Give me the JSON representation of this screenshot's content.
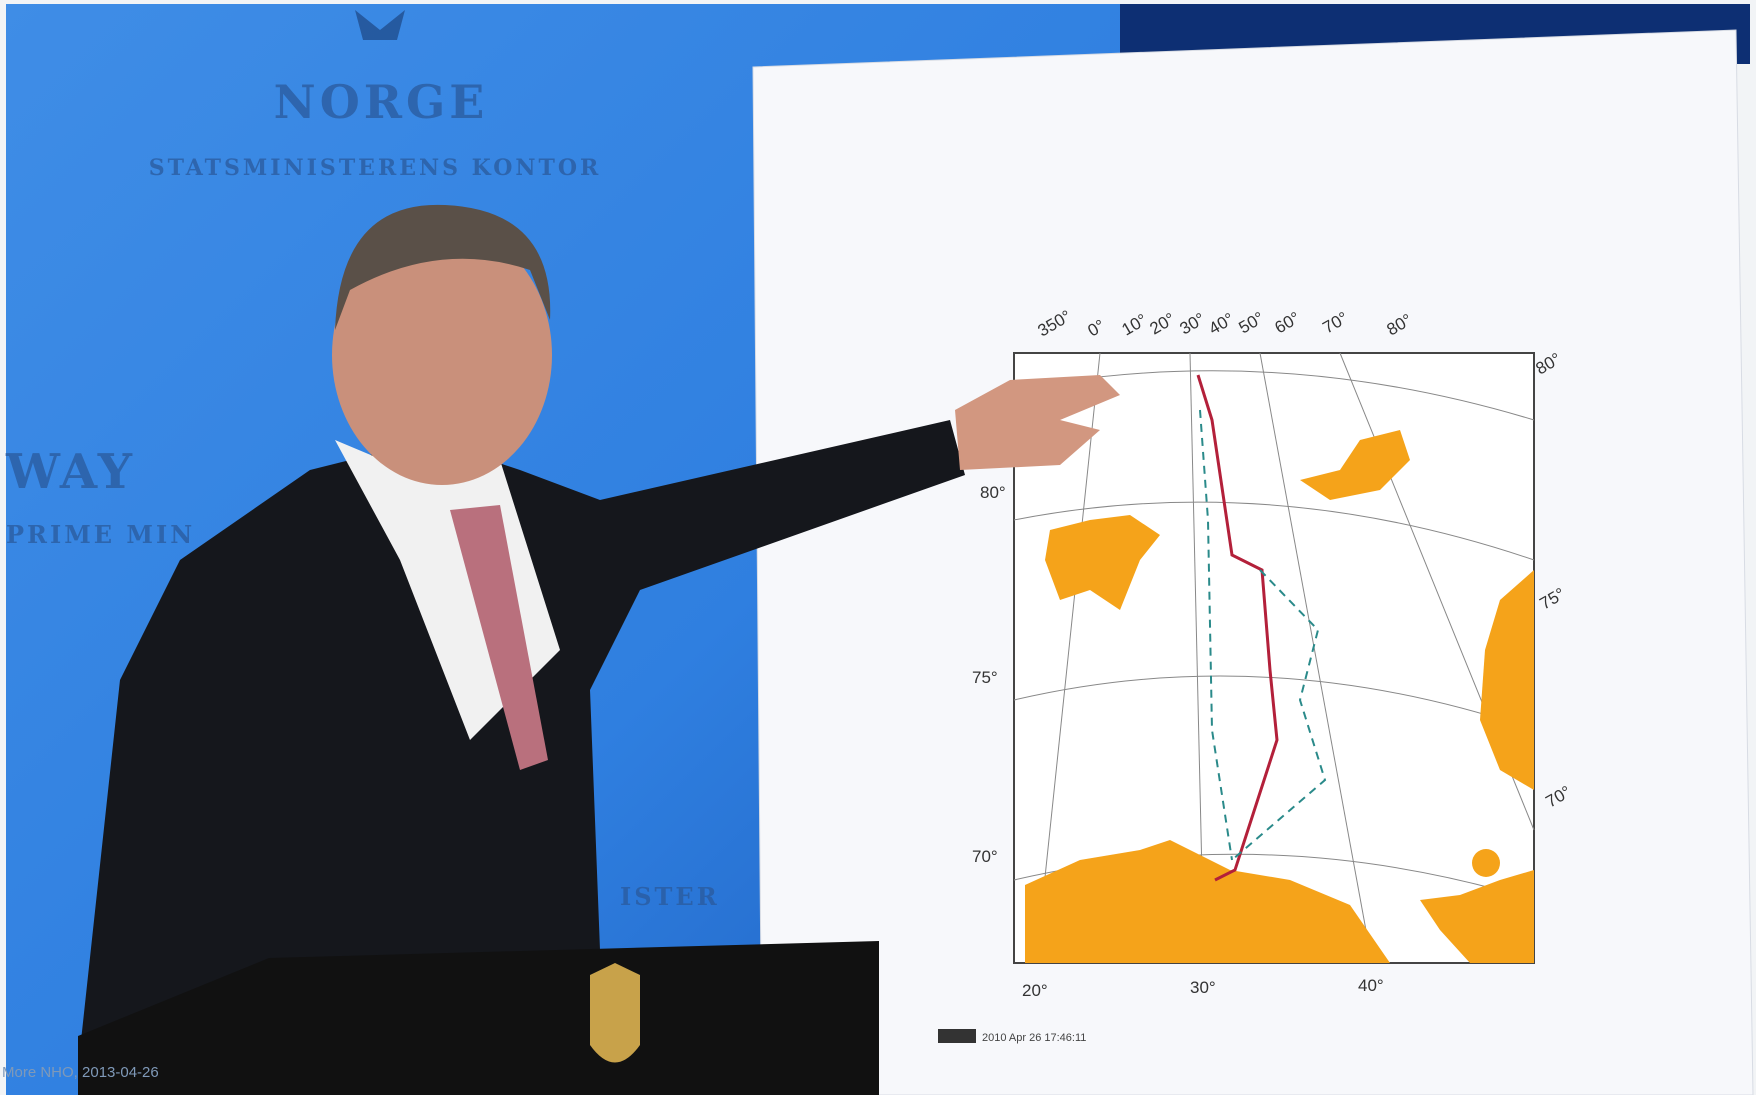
{
  "backdrop": {
    "title": "NORGE",
    "subtitle": "STATSMINISTERENS KONTOR",
    "left_title": "WAY",
    "left_subtitle": "PRIME MIN",
    "bottom_text": "ISTER"
  },
  "map": {
    "top_labels": [
      "350°",
      "0°",
      "10°",
      "20°",
      "30°",
      "40°",
      "50°",
      "60°",
      "70°",
      "80°"
    ],
    "left_labels": [
      "80°",
      "75°",
      "70°"
    ],
    "right_labels": [
      "80°",
      "75°",
      "70°"
    ],
    "bottom_labels": [
      "20°",
      "30°",
      "40°"
    ],
    "timestamp": "2010 Apr 26 17:46:11"
  },
  "caption": "More NHO, 2013-04-26"
}
